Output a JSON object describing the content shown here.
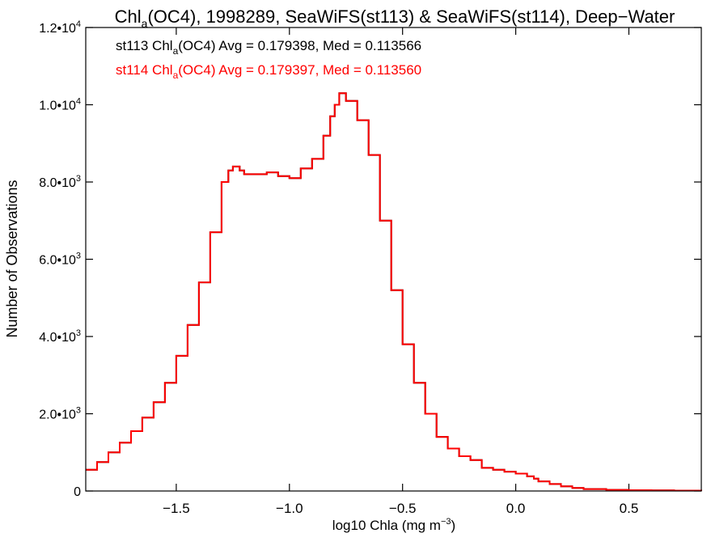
{
  "chart_data": {
    "type": "line",
    "title": {
      "pre": "Chl",
      "sub": "a",
      "post": "(OC4), 1998289, SeaWiFS(st113) & SeaWiFS(st114), Deep−Water"
    },
    "xlabel": {
      "pre": "log10 Chla (mg m",
      "sup": "−3",
      "post": ")"
    },
    "ylabel": "Number of Observations",
    "xlim": [
      -1.9,
      0.82
    ],
    "ylim": [
      0,
      12000
    ],
    "x_ticks": [
      {
        "value": -1.5,
        "label": "−1.5"
      },
      {
        "value": -1.0,
        "label": "−1.0"
      },
      {
        "value": -0.5,
        "label": "−0.5"
      },
      {
        "value": 0.0,
        "label": "0.0"
      },
      {
        "value": 0.5,
        "label": "0.5"
      }
    ],
    "y_ticks": [
      {
        "value": 0,
        "mant": "0",
        "exp": ""
      },
      {
        "value": 2000,
        "mant": "2.0•10",
        "exp": "3"
      },
      {
        "value": 4000,
        "mant": "4.0•10",
        "exp": "3"
      },
      {
        "value": 6000,
        "mant": "6.0•10",
        "exp": "3"
      },
      {
        "value": 8000,
        "mant": "8.0•10",
        "exp": "3"
      },
      {
        "value": 10000,
        "mant": "1.0•10",
        "exp": "4"
      },
      {
        "value": 12000,
        "mant": "1.2•10",
        "exp": "4"
      }
    ],
    "annotations": [
      {
        "pre": "st113 Chl",
        "sub": "a",
        "post": "(OC4) Avg = 0.179398, Med = 0.113566",
        "color": "#000000"
      },
      {
        "pre": "st114 Chl",
        "sub": "a",
        "post": "(OC4) Avg = 0.179397, Med = 0.113560",
        "color": "#ff0000"
      }
    ],
    "series": [
      {
        "name": "st113",
        "color": "#000000",
        "x": [
          -1.9,
          -1.85,
          -1.8,
          -1.75,
          -1.7,
          -1.65,
          -1.6,
          -1.55,
          -1.5,
          -1.45,
          -1.4,
          -1.35,
          -1.3,
          -1.27,
          -1.25,
          -1.22,
          -1.2,
          -1.15,
          -1.1,
          -1.05,
          -1.0,
          -0.95,
          -0.9,
          -0.85,
          -0.82,
          -0.8,
          -0.78,
          -0.75,
          -0.7,
          -0.65,
          -0.6,
          -0.55,
          -0.5,
          -0.45,
          -0.4,
          -0.35,
          -0.3,
          -0.25,
          -0.2,
          -0.15,
          -0.1,
          -0.05,
          0.0,
          0.05,
          0.08,
          0.1,
          0.15,
          0.2,
          0.25,
          0.3,
          0.4,
          0.5,
          0.6,
          0.7,
          0.82
        ],
        "values": [
          550,
          750,
          1000,
          1250,
          1550,
          1900,
          2300,
          2800,
          3500,
          4300,
          5400,
          6700,
          8000,
          8300,
          8400,
          8300,
          8200,
          8200,
          8250,
          8150,
          8100,
          8350,
          8600,
          9200,
          9700,
          10000,
          10300,
          10100,
          9600,
          8700,
          7000,
          5200,
          3800,
          2800,
          2000,
          1400,
          1100,
          900,
          800,
          600,
          550,
          500,
          450,
          380,
          320,
          250,
          180,
          120,
          80,
          50,
          30,
          20,
          15,
          10,
          5
        ]
      },
      {
        "name": "st114",
        "color": "#ff0000",
        "x": [
          -1.9,
          -1.85,
          -1.8,
          -1.75,
          -1.7,
          -1.65,
          -1.6,
          -1.55,
          -1.5,
          -1.45,
          -1.4,
          -1.35,
          -1.3,
          -1.27,
          -1.25,
          -1.22,
          -1.2,
          -1.15,
          -1.1,
          -1.05,
          -1.0,
          -0.95,
          -0.9,
          -0.85,
          -0.82,
          -0.8,
          -0.78,
          -0.75,
          -0.7,
          -0.65,
          -0.6,
          -0.55,
          -0.5,
          -0.45,
          -0.4,
          -0.35,
          -0.3,
          -0.25,
          -0.2,
          -0.15,
          -0.1,
          -0.05,
          0.0,
          0.05,
          0.08,
          0.1,
          0.15,
          0.2,
          0.25,
          0.3,
          0.4,
          0.5,
          0.6,
          0.7,
          0.82
        ],
        "values": [
          550,
          750,
          1000,
          1250,
          1550,
          1900,
          2300,
          2800,
          3500,
          4300,
          5400,
          6700,
          8000,
          8300,
          8400,
          8300,
          8200,
          8200,
          8250,
          8150,
          8100,
          8350,
          8600,
          9200,
          9700,
          10000,
          10300,
          10100,
          9600,
          8700,
          7000,
          5200,
          3800,
          2800,
          2000,
          1400,
          1100,
          900,
          800,
          600,
          550,
          500,
          450,
          380,
          320,
          250,
          180,
          120,
          80,
          50,
          30,
          20,
          15,
          10,
          5
        ]
      }
    ],
    "grid": false,
    "legend": "none"
  }
}
